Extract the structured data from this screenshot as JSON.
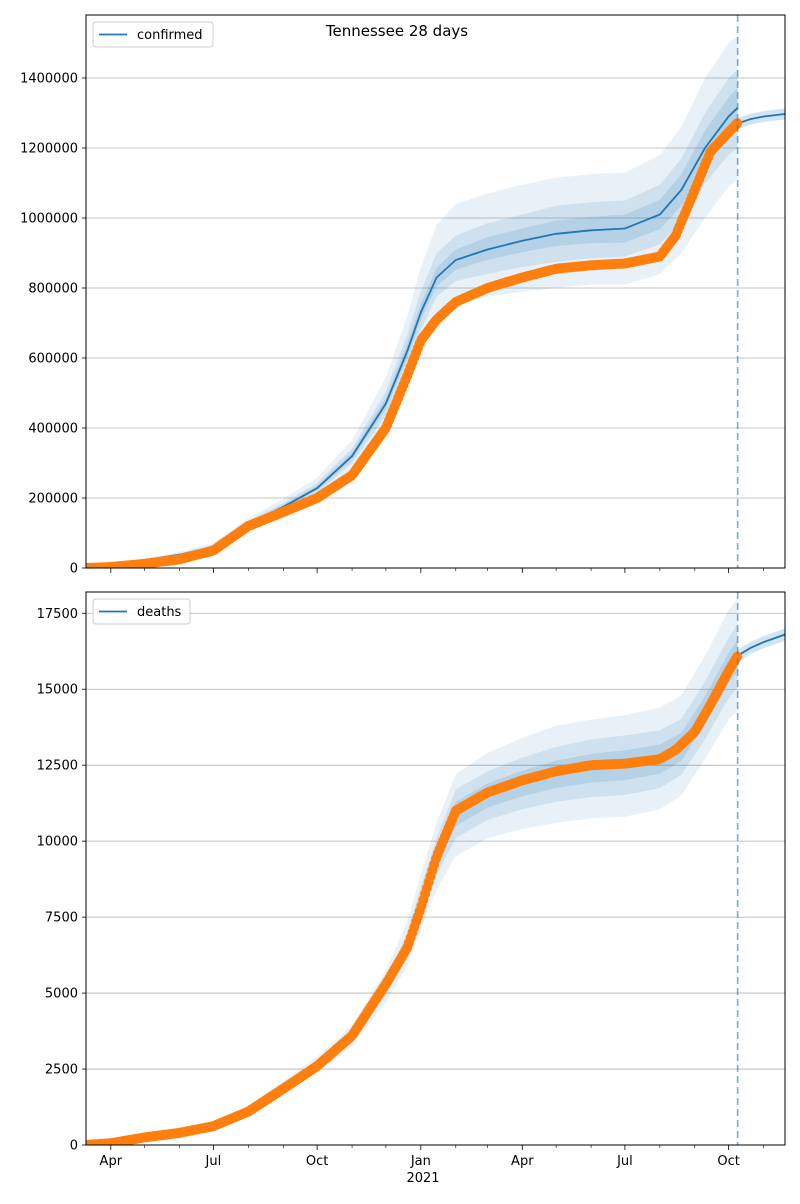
{
  "title": "Tennessee 28 days",
  "colors": {
    "model_line": "#1f77b4",
    "band": "#1f77b4",
    "observed": "#ff7f0e",
    "forecast_marker": "#1f77b4",
    "grid": "#b0b0b0"
  },
  "x_axis": {
    "start": "2020-03-10",
    "end": "2021-11-20",
    "year_label": "2021",
    "ticks": [
      {
        "date": "2020-04-01",
        "label": "Apr"
      },
      {
        "date": "2020-07-01",
        "label": "Jul"
      },
      {
        "date": "2020-10-01",
        "label": "Oct"
      },
      {
        "date": "2021-01-01",
        "label": "Jan"
      },
      {
        "date": "2021-04-01",
        "label": "Apr"
      },
      {
        "date": "2021-07-01",
        "label": "Jul"
      },
      {
        "date": "2021-10-01",
        "label": "Oct"
      }
    ],
    "minor_ticks": [
      "2020-05-01",
      "2020-06-01",
      "2020-08-01",
      "2020-09-01",
      "2020-11-01",
      "2020-12-01",
      "2021-02-01",
      "2021-03-01",
      "2021-05-01",
      "2021-06-01",
      "2021-08-01",
      "2021-09-01",
      "2021-11-01"
    ]
  },
  "chart_data": [
    {
      "type": "line",
      "legend": "confirmed",
      "legend_position": "upper-left",
      "ylim": [
        0,
        1580000
      ],
      "yticks": [
        "0",
        "200000",
        "400000",
        "600000",
        "800000",
        "1000000",
        "1200000",
        "1400000"
      ],
      "ytick_values": [
        0,
        200000,
        400000,
        600000,
        800000,
        1000000,
        1200000,
        1400000
      ],
      "grid": true,
      "forecast_start": "2021-10-09",
      "model": {
        "x": [
          "2020-03-10",
          "2020-04-01",
          "2020-05-01",
          "2020-06-01",
          "2020-07-01",
          "2020-08-01",
          "2020-09-01",
          "2020-10-01",
          "2020-11-01",
          "2020-12-01",
          "2020-12-20",
          "2021-01-01",
          "2021-01-15",
          "2021-02-01",
          "2021-03-01",
          "2021-04-01",
          "2021-05-01",
          "2021-06-01",
          "2021-07-01",
          "2021-08-01",
          "2021-08-20",
          "2021-09-10",
          "2021-10-01",
          "2021-10-09"
        ],
        "y": [
          0,
          8000,
          22000,
          38000,
          60000,
          125000,
          175000,
          228000,
          320000,
          470000,
          620000,
          730000,
          830000,
          880000,
          910000,
          935000,
          955000,
          965000,
          970000,
          1010000,
          1080000,
          1200000,
          1290000,
          1315000
        ]
      },
      "forecast": {
        "x": [
          "2021-10-09",
          "2021-10-20",
          "2021-11-01",
          "2021-11-20"
        ],
        "y": [
          1270000,
          1282000,
          1290000,
          1297000
        ]
      },
      "bands": [
        {
          "lower": [
            0,
            5000,
            17000,
            31000,
            50000,
            110000,
            155000,
            200000,
            280000,
            400000,
            520000,
            630000,
            720000,
            760000,
            775000,
            790000,
            800000,
            810000,
            810000,
            840000,
            900000,
            1000000,
            1090000,
            1110000
          ],
          "upper": [
            0,
            11000,
            28000,
            46000,
            72000,
            142000,
            198000,
            258000,
            365000,
            545000,
            720000,
            860000,
            980000,
            1040000,
            1070000,
            1095000,
            1115000,
            1125000,
            1130000,
            1180000,
            1260000,
            1400000,
            1500000,
            1520000
          ]
        },
        {
          "lower": [
            0,
            6500,
            19000,
            34000,
            55000,
            117000,
            165000,
            214000,
            300000,
            435000,
            575000,
            680000,
            775000,
            820000,
            840000,
            860000,
            875000,
            885000,
            890000,
            925000,
            990000,
            1100000,
            1180000,
            1200000
          ],
          "upper": [
            0,
            9500,
            25000,
            42000,
            66000,
            134000,
            186000,
            243000,
            342000,
            505000,
            668000,
            790000,
            900000,
            950000,
            985000,
            1010000,
            1035000,
            1045000,
            1050000,
            1095000,
            1170000,
            1300000,
            1400000,
            1425000
          ]
        },
        {
          "lower": [
            0,
            7500,
            20500,
            36000,
            58000,
            121000,
            170000,
            221000,
            310000,
            455000,
            600000,
            708000,
            805000,
            852000,
            880000,
            902000,
            920000,
            928000,
            930000,
            968000,
            1035000,
            1150000,
            1235000,
            1258000
          ],
          "upper": [
            0,
            8500,
            23500,
            40000,
            63000,
            129000,
            180000,
            235000,
            331000,
            486000,
            642000,
            755000,
            858000,
            910000,
            945000,
            970000,
            993000,
            1003000,
            1010000,
            1052000,
            1125000,
            1250000,
            1345000,
            1372000
          ]
        }
      ],
      "observed": {
        "x": [
          "2020-03-10",
          "2020-04-01",
          "2020-05-01",
          "2020-06-01",
          "2020-07-01",
          "2020-08-01",
          "2020-09-01",
          "2020-10-01",
          "2020-11-01",
          "2020-12-01",
          "2020-12-20",
          "2021-01-01",
          "2021-01-15",
          "2021-02-01",
          "2021-03-01",
          "2021-04-01",
          "2021-05-01",
          "2021-06-01",
          "2021-07-01",
          "2021-08-01",
          "2021-08-15",
          "2021-09-01",
          "2021-09-15",
          "2021-10-01",
          "2021-10-09"
        ],
        "y": [
          0,
          3000,
          12000,
          25000,
          50000,
          120000,
          160000,
          200000,
          265000,
          400000,
          550000,
          650000,
          710000,
          760000,
          800000,
          830000,
          855000,
          865000,
          870000,
          890000,
          950000,
          1080000,
          1190000,
          1245000,
          1272000
        ]
      }
    },
    {
      "type": "line",
      "legend": "deaths",
      "legend_position": "upper-left",
      "ylim": [
        0,
        18200
      ],
      "yticks": [
        "0",
        "2500",
        "5000",
        "7500",
        "10000",
        "12500",
        "15000",
        "17500"
      ],
      "ytick_values": [
        0,
        2500,
        5000,
        7500,
        10000,
        12500,
        15000,
        17500
      ],
      "grid": true,
      "forecast_start": "2021-10-09",
      "model": {
        "x": [
          "2020-03-10",
          "2020-04-01",
          "2020-05-01",
          "2020-06-01",
          "2020-07-01",
          "2020-08-01",
          "2020-09-01",
          "2020-10-01",
          "2020-11-01",
          "2020-12-01",
          "2020-12-20",
          "2021-01-01",
          "2021-01-15",
          "2021-02-01",
          "2021-03-01",
          "2021-04-01",
          "2021-05-01",
          "2021-06-01",
          "2021-07-01",
          "2021-08-01",
          "2021-08-20",
          "2021-09-10",
          "2021-10-01",
          "2021-10-09"
        ],
        "y": [
          0,
          100,
          280,
          430,
          620,
          1150,
          1900,
          2650,
          3600,
          5200,
          6600,
          8000,
          9500,
          10900,
          11500,
          11900,
          12200,
          12400,
          12500,
          12700,
          13100,
          14300,
          15700,
          16100
        ]
      },
      "forecast": {
        "x": [
          "2021-10-09",
          "2021-10-20",
          "2021-11-01",
          "2021-11-20"
        ],
        "y": [
          16100,
          16350,
          16550,
          16800
        ]
      },
      "bands": [
        {
          "lower": [
            0,
            80,
            240,
            380,
            560,
            1030,
            1700,
            2400,
            3250,
            4700,
            5900,
            7100,
            8400,
            9500,
            10100,
            10400,
            10600,
            10750,
            10800,
            11050,
            11500,
            12700,
            14000,
            14300
          ],
          "upper": [
            0,
            120,
            320,
            480,
            690,
            1280,
            2100,
            2900,
            3950,
            5750,
            7350,
            8900,
            10600,
            12200,
            12900,
            13400,
            13800,
            14000,
            14150,
            14400,
            14800,
            16100,
            17600,
            18000
          ]
        },
        {
          "lower": [
            0,
            90,
            255,
            400,
            585,
            1080,
            1790,
            2510,
            3410,
            4940,
            6220,
            7500,
            8900,
            10100,
            10700,
            11050,
            11300,
            11450,
            11520,
            11750,
            12180,
            13350,
            14700,
            15050
          ],
          "upper": [
            0,
            110,
            305,
            460,
            655,
            1220,
            2010,
            2790,
            3790,
            5460,
            6980,
            8500,
            10100,
            11700,
            12300,
            12750,
            13100,
            13350,
            13480,
            13650,
            14020,
            15250,
            16700,
            17150
          ]
        },
        {
          "lower": [
            0,
            95,
            268,
            415,
            602,
            1115,
            1845,
            2580,
            3505,
            5070,
            6410,
            7750,
            9200,
            10500,
            11100,
            11480,
            11750,
            11930,
            12010,
            12220,
            12640,
            13830,
            15200,
            15580
          ],
          "upper": [
            0,
            105,
            292,
            445,
            638,
            1185,
            1955,
            2720,
            3695,
            5330,
            6790,
            8250,
            9800,
            11300,
            11900,
            12320,
            12650,
            12870,
            12990,
            13180,
            13560,
            14770,
            16200,
            16620
          ]
        }
      ],
      "observed": {
        "x": [
          "2020-03-10",
          "2020-04-01",
          "2020-05-01",
          "2020-06-01",
          "2020-07-01",
          "2020-08-01",
          "2020-09-01",
          "2020-10-01",
          "2020-11-01",
          "2020-12-01",
          "2020-12-20",
          "2021-01-01",
          "2021-01-15",
          "2021-02-01",
          "2021-03-01",
          "2021-04-01",
          "2021-05-01",
          "2021-06-01",
          "2021-07-01",
          "2021-08-01",
          "2021-08-15",
          "2021-09-01",
          "2021-09-15",
          "2021-10-01",
          "2021-10-09"
        ],
        "y": [
          0,
          60,
          250,
          400,
          620,
          1100,
          1850,
          2600,
          3600,
          5300,
          6500,
          7800,
          9500,
          11000,
          11600,
          12000,
          12300,
          12500,
          12550,
          12700,
          13000,
          13600,
          14500,
          15600,
          16100
        ]
      }
    }
  ]
}
